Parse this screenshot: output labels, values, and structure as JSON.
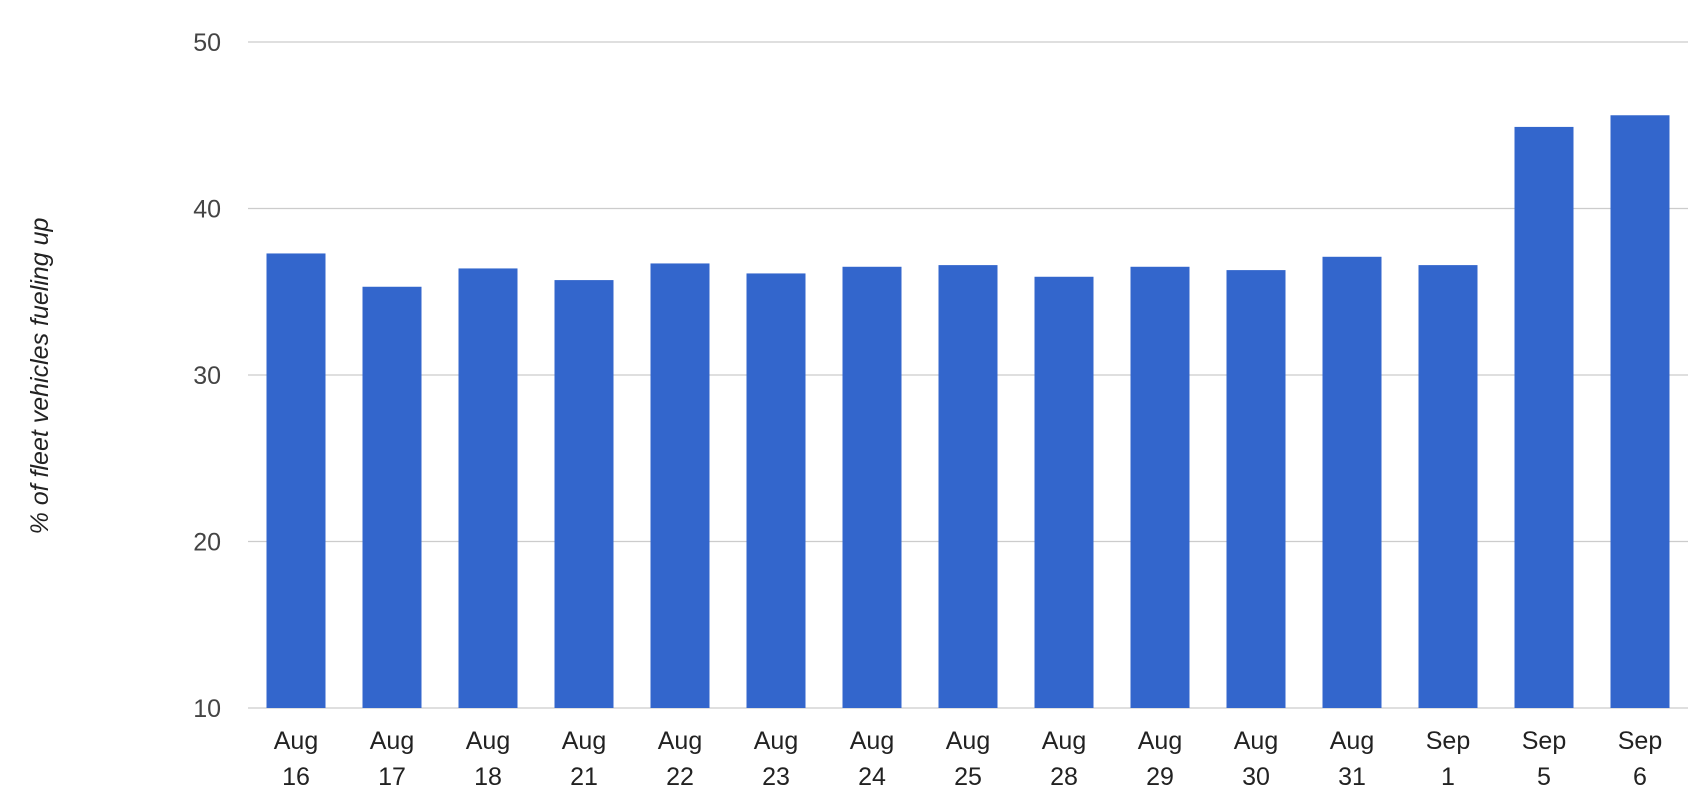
{
  "chart_data": {
    "type": "bar",
    "categories": [
      [
        "Aug",
        "16"
      ],
      [
        "Aug",
        "17"
      ],
      [
        "Aug",
        "18"
      ],
      [
        "Aug",
        "21"
      ],
      [
        "Aug",
        "22"
      ],
      [
        "Aug",
        "23"
      ],
      [
        "Aug",
        "24"
      ],
      [
        "Aug",
        "25"
      ],
      [
        "Aug",
        "28"
      ],
      [
        "Aug",
        "29"
      ],
      [
        "Aug",
        "30"
      ],
      [
        "Aug",
        "31"
      ],
      [
        "Sep",
        "1"
      ],
      [
        "Sep",
        "5"
      ],
      [
        "Sep",
        "6"
      ]
    ],
    "values": [
      37.3,
      35.3,
      36.4,
      35.7,
      36.7,
      36.1,
      36.5,
      36.6,
      35.9,
      36.5,
      36.3,
      37.1,
      36.6,
      44.9,
      45.6
    ],
    "title": "",
    "xlabel": "",
    "ylabel": "% of fleet vehicles fueling up",
    "ylim": [
      10,
      50
    ],
    "yticks": [
      "10",
      "20",
      "30",
      "40",
      "50"
    ],
    "grid": true,
    "colors": {
      "bar": "#3366cc",
      "grid": "#cccccc",
      "baseline": "#cccccc"
    }
  }
}
